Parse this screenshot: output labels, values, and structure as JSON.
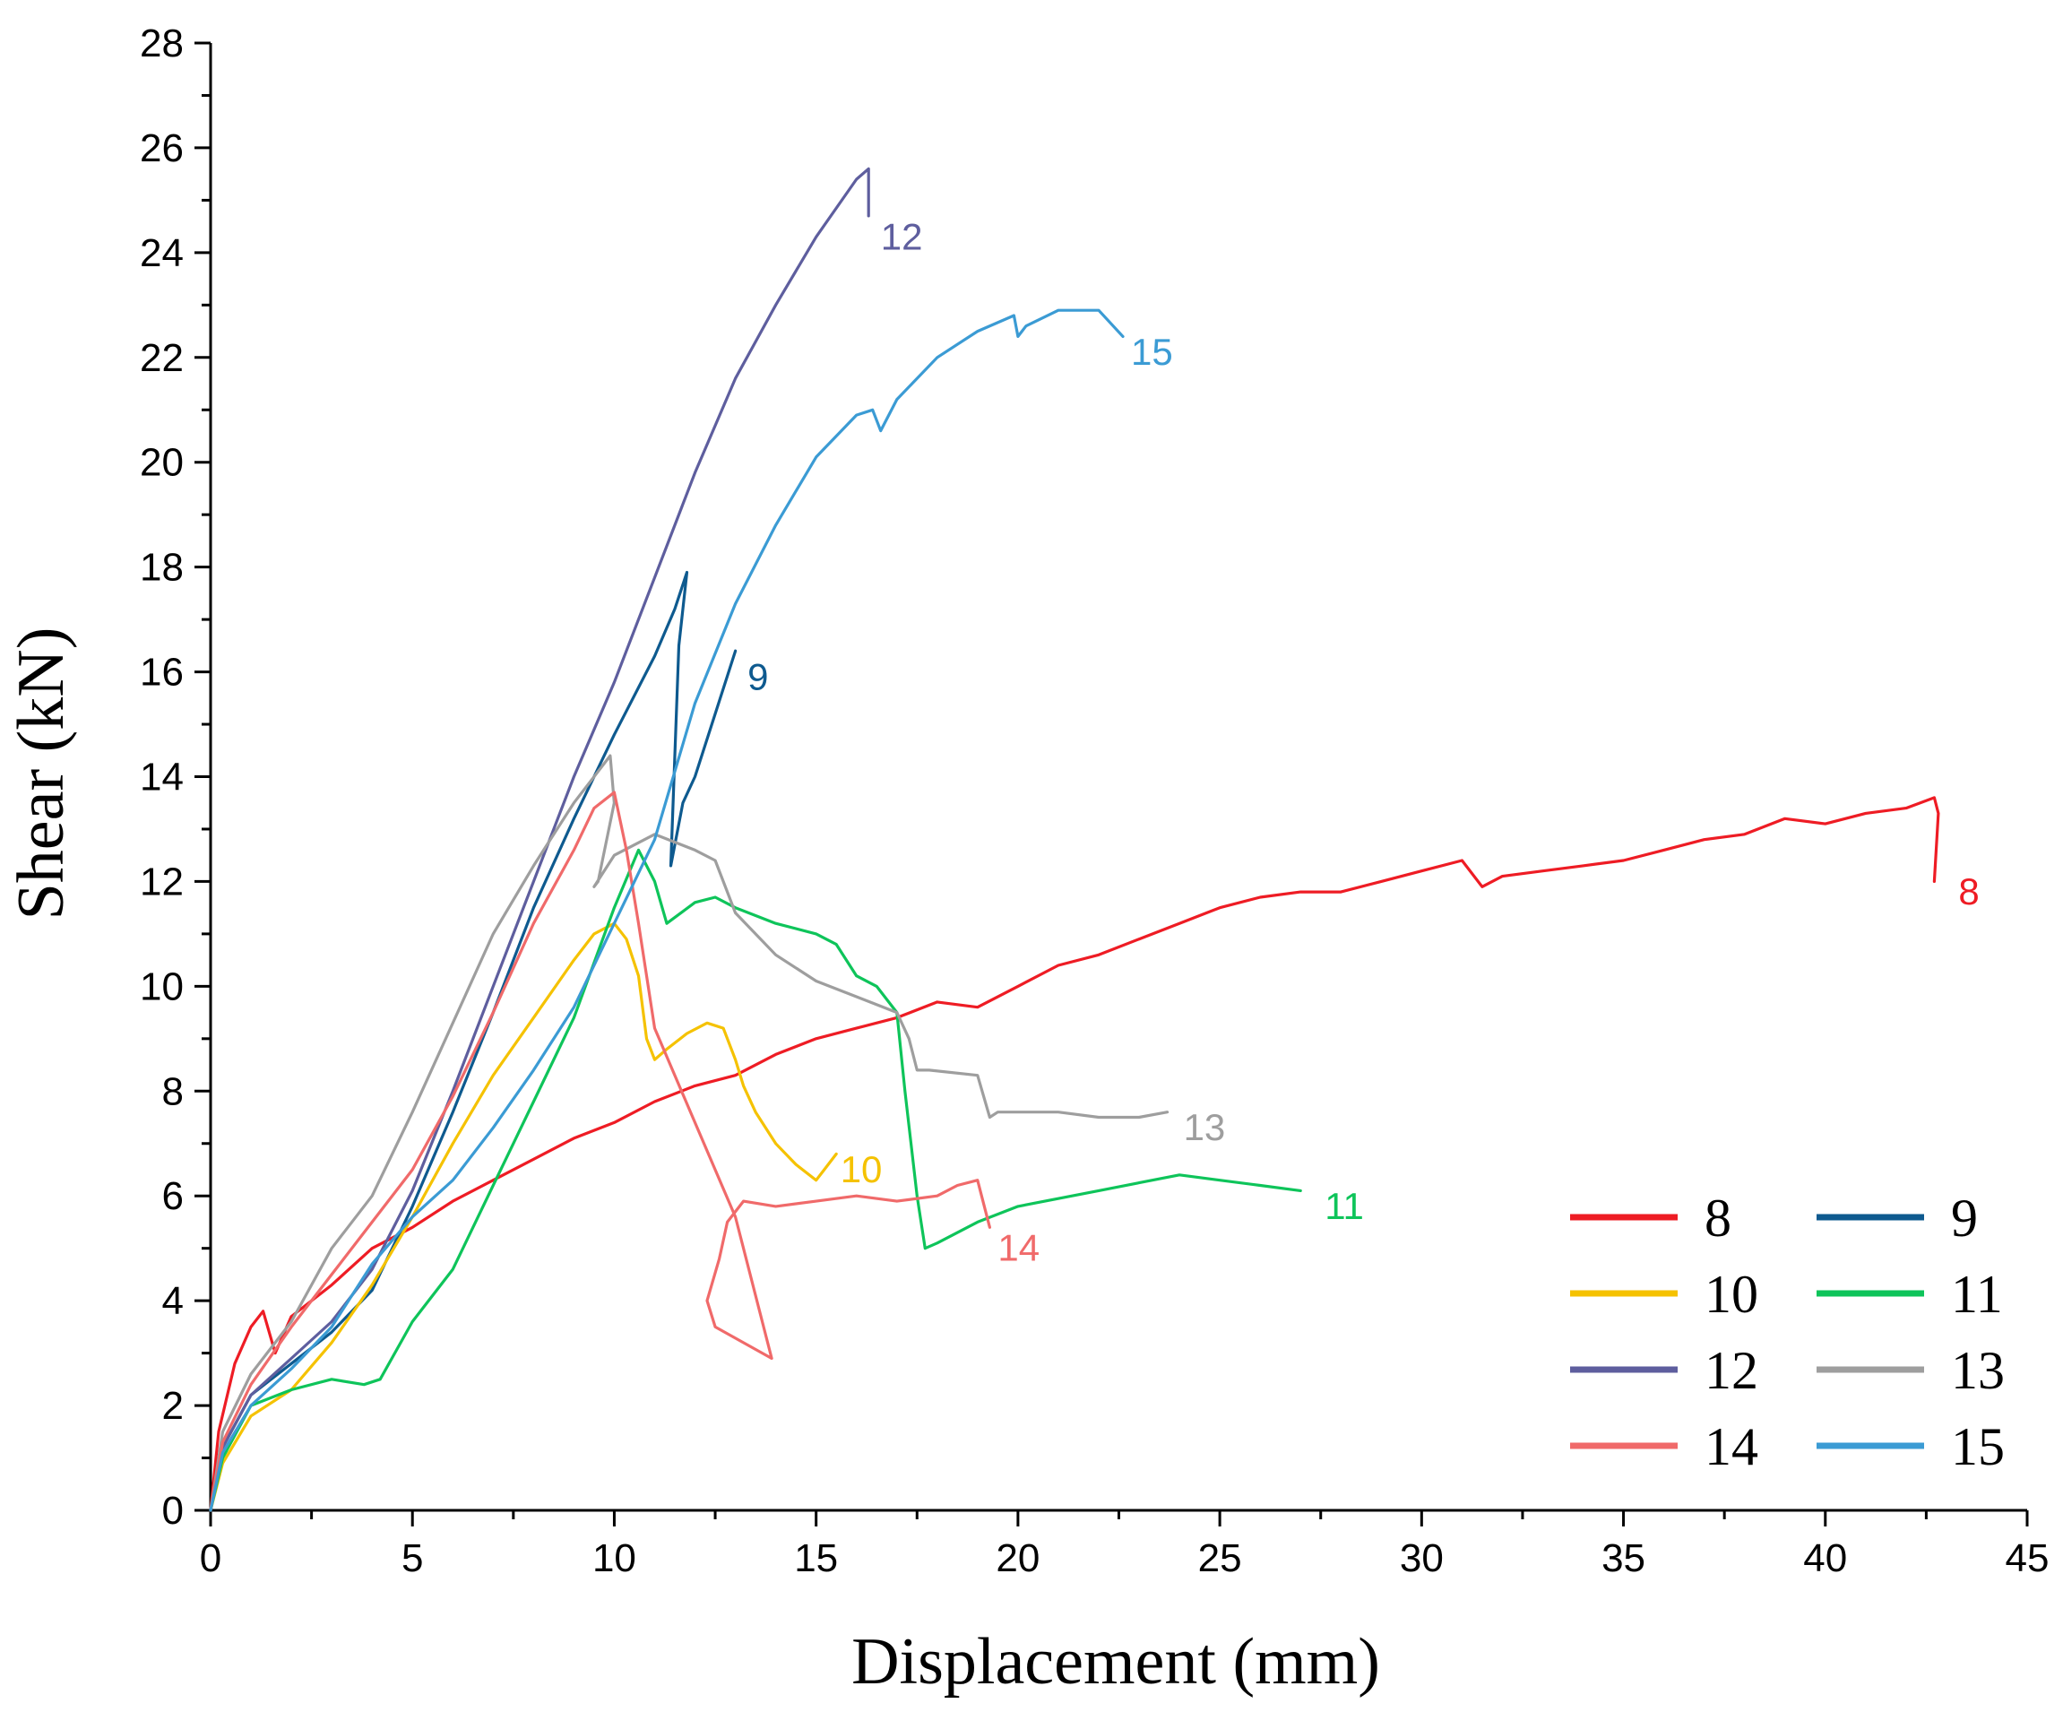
{
  "chart_data": {
    "type": "line",
    "title": "",
    "xlabel": "Displacement (mm)",
    "ylabel": "Shear (kN)",
    "xlim": [
      0,
      45
    ],
    "ylim": [
      0,
      28
    ],
    "xticks": [
      0,
      5,
      10,
      15,
      20,
      25,
      30,
      35,
      40,
      45
    ],
    "yticks": [
      0,
      2,
      4,
      6,
      8,
      10,
      12,
      14,
      16,
      18,
      20,
      22,
      24,
      26,
      28
    ],
    "grid": false,
    "legend_position": "bottom-right",
    "series": [
      {
        "name": "8",
        "color": "#ee1c24",
        "end_label": "8",
        "label_at": [
          43.3,
          11.8
        ],
        "x": [
          0,
          0.2,
          0.6,
          1.0,
          1.3,
          1.6,
          2.0,
          3.0,
          4.0,
          5.0,
          6.0,
          7.0,
          8.0,
          9.0,
          10.0,
          11.0,
          12.0,
          13.0,
          14.0,
          15.0,
          16.0,
          17.0,
          18.0,
          19.0,
          20.0,
          21.0,
          22.0,
          23.0,
          24.0,
          25.0,
          26.0,
          27.0,
          28.0,
          29.0,
          30.0,
          31.0,
          31.5,
          32.0,
          33.0,
          34.0,
          35.0,
          36.0,
          37.0,
          38.0,
          39.0,
          40.0,
          41.0,
          42.0,
          42.7,
          42.8,
          42.7
        ],
        "values": [
          0,
          1.5,
          2.8,
          3.5,
          3.8,
          3.0,
          3.7,
          4.3,
          5.0,
          5.4,
          5.9,
          6.3,
          6.7,
          7.1,
          7.4,
          7.8,
          8.1,
          8.3,
          8.7,
          9.0,
          9.2,
          9.4,
          9.7,
          9.6,
          10.0,
          10.4,
          10.6,
          10.9,
          11.2,
          11.5,
          11.7,
          11.8,
          11.8,
          12.0,
          12.2,
          12.4,
          11.9,
          12.1,
          12.2,
          12.3,
          12.4,
          12.6,
          12.8,
          12.9,
          13.2,
          13.1,
          13.3,
          13.4,
          13.6,
          13.3,
          12.0
        ]
      },
      {
        "name": "9",
        "color": "#0e5a8f",
        "end_label": "9",
        "label_at": [
          13.3,
          15.9
        ],
        "x": [
          0,
          0.3,
          1.0,
          2.0,
          3.0,
          4.0,
          5.0,
          6.0,
          7.0,
          8.0,
          9.0,
          10.0,
          11.0,
          11.5,
          11.8,
          11.6,
          11.4,
          11.7,
          12.0,
          12.5,
          13.0
        ],
        "values": [
          0,
          1.2,
          2.2,
          2.8,
          3.4,
          4.2,
          5.8,
          7.6,
          9.5,
          11.5,
          13.2,
          14.8,
          16.3,
          17.2,
          17.9,
          16.5,
          12.3,
          13.5,
          14.0,
          15.2,
          16.4
        ]
      },
      {
        "name": "10",
        "color": "#f5c200",
        "end_label": "10",
        "label_at": [
          15.6,
          6.5
        ],
        "x": [
          0,
          0.3,
          1.0,
          2.0,
          3.0,
          4.0,
          5.0,
          6.0,
          7.0,
          8.0,
          9.0,
          9.5,
          10.0,
          10.3,
          10.6,
          10.8,
          11.0,
          11.3,
          11.8,
          12.3,
          12.7,
          13.0,
          13.2,
          13.5,
          14.0,
          14.5,
          15.0,
          15.2,
          15.5
        ],
        "values": [
          0,
          0.9,
          1.8,
          2.3,
          3.2,
          4.3,
          5.6,
          7.0,
          8.3,
          9.4,
          10.5,
          11.0,
          11.2,
          10.9,
          10.2,
          9.0,
          8.6,
          8.8,
          9.1,
          9.3,
          9.2,
          8.6,
          8.1,
          7.6,
          7.0,
          6.6,
          6.3,
          6.5,
          6.8
        ]
      },
      {
        "name": "11",
        "color": "#0ec45a",
        "end_label": "11",
        "label_at": [
          27.6,
          5.8
        ],
        "x": [
          0,
          0.3,
          1.0,
          2.0,
          3.0,
          3.8,
          4.2,
          5.0,
          6.0,
          7.0,
          8.0,
          9.0,
          10.0,
          10.6,
          11.0,
          11.3,
          12.0,
          12.5,
          13.0,
          14.0,
          15.0,
          15.5,
          16.0,
          16.5,
          17.0,
          17.2,
          17.5,
          17.7,
          18.0,
          19.0,
          20.0,
          22.0,
          24.0,
          25.0,
          26.0,
          27.0
        ],
        "values": [
          0,
          1.0,
          2.0,
          2.3,
          2.5,
          2.4,
          2.5,
          3.6,
          4.6,
          6.2,
          7.8,
          9.4,
          11.5,
          12.6,
          12.0,
          11.2,
          11.6,
          11.7,
          11.5,
          11.2,
          11.0,
          10.8,
          10.2,
          10.0,
          9.5,
          8.0,
          6.0,
          5.0,
          5.1,
          5.5,
          5.8,
          6.1,
          6.4,
          6.3,
          6.2,
          6.1
        ]
      },
      {
        "name": "12",
        "color": "#5e5e9e",
        "end_label": "12",
        "label_at": [
          16.6,
          24.3
        ],
        "x": [
          0,
          0.3,
          1.0,
          2.0,
          3.0,
          4.0,
          5.0,
          6.0,
          7.0,
          8.0,
          9.0,
          10.0,
          11.0,
          12.0,
          13.0,
          14.0,
          15.0,
          16.0,
          16.3,
          16.3
        ],
        "values": [
          0,
          1.2,
          2.2,
          2.9,
          3.6,
          4.6,
          6.1,
          8.0,
          10.0,
          12.0,
          14.0,
          15.8,
          17.8,
          19.8,
          21.6,
          23.0,
          24.3,
          25.4,
          25.6,
          24.7
        ]
      },
      {
        "name": "13",
        "color": "#9e9e9e",
        "end_label": "13",
        "label_at": [
          24.1,
          7.3
        ],
        "x": [
          0,
          0.3,
          1.0,
          2.0,
          3.0,
          4.0,
          5.0,
          6.0,
          7.0,
          8.0,
          9.0,
          9.6,
          9.9,
          10.0,
          9.6,
          9.5,
          10.0,
          11.0,
          12.0,
          12.5,
          13.0,
          14.0,
          15.0,
          16.0,
          17.0,
          17.3,
          17.5,
          17.8,
          19.0,
          19.3,
          19.5,
          20.0,
          21.0,
          22.0,
          23.0,
          23.7
        ],
        "values": [
          0,
          1.5,
          2.6,
          3.6,
          5.0,
          6.0,
          7.6,
          9.3,
          11.0,
          12.3,
          13.5,
          14.1,
          14.4,
          13.5,
          12.0,
          11.9,
          12.5,
          12.9,
          12.6,
          12.4,
          11.4,
          10.6,
          10.1,
          9.8,
          9.5,
          9.0,
          8.4,
          8.4,
          8.3,
          7.5,
          7.6,
          7.6,
          7.6,
          7.5,
          7.5,
          7.6
        ]
      },
      {
        "name": "14",
        "color": "#f06a6a",
        "end_label": "14",
        "label_at": [
          19.5,
          5.0
        ],
        "x": [
          0,
          0.3,
          1.0,
          2.0,
          3.0,
          4.0,
          5.0,
          6.0,
          7.0,
          8.0,
          9.0,
          9.5,
          10.0,
          10.3,
          10.6,
          11.0,
          12.0,
          13.0,
          13.9,
          12.5,
          12.3,
          12.6,
          12.8,
          13.2,
          14.0,
          15.0,
          16.0,
          17.0,
          18.0,
          18.5,
          19.0,
          19.3
        ],
        "values": [
          0,
          1.3,
          2.4,
          3.5,
          4.5,
          5.5,
          6.5,
          7.9,
          9.5,
          11.2,
          12.6,
          13.4,
          13.7,
          12.6,
          11.2,
          9.2,
          7.4,
          5.6,
          2.9,
          3.5,
          4.0,
          4.8,
          5.5,
          5.9,
          5.8,
          5.9,
          6.0,
          5.9,
          6.0,
          6.2,
          6.3,
          5.4
        ]
      },
      {
        "name": "15",
        "color": "#3b9bd4",
        "end_label": "15",
        "label_at": [
          22.8,
          22.1
        ],
        "x": [
          0,
          0.3,
          1.0,
          2.0,
          3.0,
          4.0,
          5.0,
          6.0,
          7.0,
          8.0,
          9.0,
          10.0,
          11.0,
          12.0,
          13.0,
          14.0,
          15.0,
          16.0,
          16.4,
          16.6,
          17.0,
          18.0,
          19.0,
          19.9,
          20.0,
          20.2,
          21.0,
          22.0,
          22.6
        ],
        "values": [
          0,
          1.1,
          2.0,
          2.7,
          3.5,
          4.7,
          5.6,
          6.3,
          7.3,
          8.4,
          9.6,
          11.2,
          12.8,
          15.4,
          17.3,
          18.8,
          20.1,
          20.9,
          21.0,
          20.6,
          21.2,
          22.0,
          22.5,
          22.8,
          22.4,
          22.6,
          22.9,
          22.9,
          22.4
        ]
      }
    ]
  }
}
